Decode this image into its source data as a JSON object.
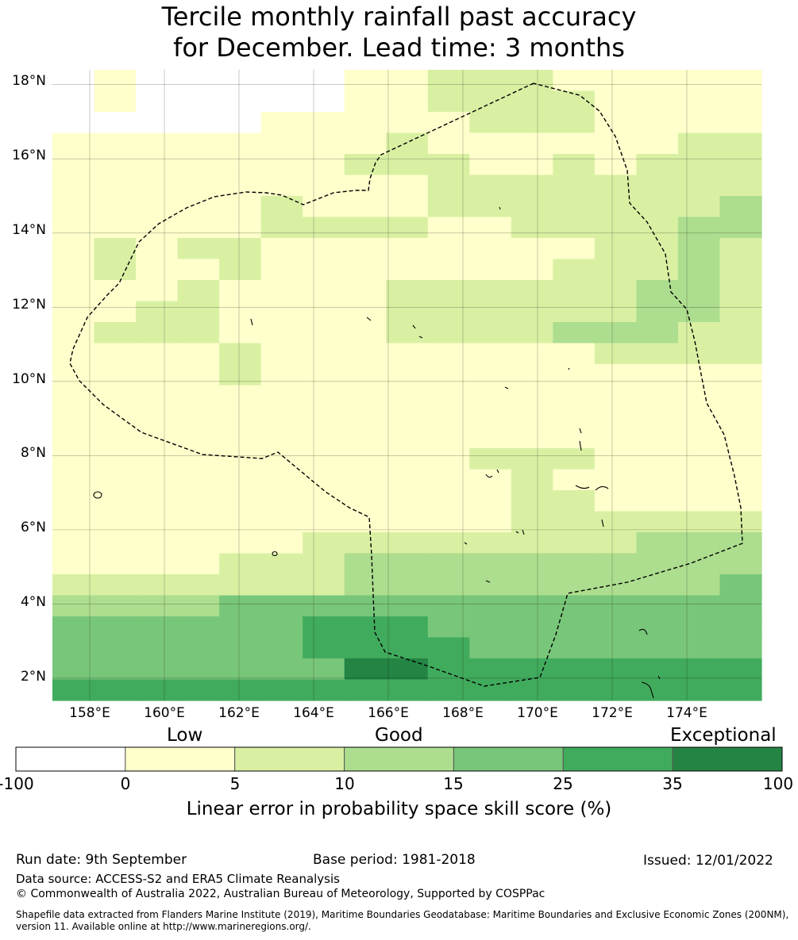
{
  "title_line1": "Tercile monthly rainfall past accuracy",
  "title_line2": "for December. Lead time: 3 months",
  "map": {
    "lon_range": [
      157,
      176
    ],
    "lat_range": [
      1.4,
      18.4
    ],
    "grid_resolution_deg": 0.8333,
    "x_ticks": [
      "158°E",
      "160°E",
      "162°E",
      "164°E",
      "166°E",
      "168°E",
      "170°E",
      "172°E",
      "174°E"
    ],
    "y_ticks": [
      "18°N",
      "16°N",
      "14°N",
      "12°N",
      "10°N",
      "8°N",
      "6°N",
      "4°N",
      "2°N"
    ],
    "gridlines": true,
    "boundary_style": "dashed black line (EEZ)",
    "grid_rows_top_to_bottom": [
      "01000001122211111",
      "01000001122221111",
      "00000111112221111",
      "11111111211111122",
      "11111112221121222",
      "11111111122222222",
      "11111211122222223",
      "11111222211222233",
      "12122111111112232",
      "12112111111122232",
      "11121111222222332",
      "11221111222222332",
      "12221111222233322",
      "11112111111112222",
      "11112111111111111",
      "11111111111111111",
      "11111111111111111",
      "11111111111111111",
      "11111111112221111",
      "11111111111211111",
      "11111111111221111",
      "11111111111222222",
      "11111122222222333",
      "11112223333333333",
      "22222223333333334",
      "33334444444444444",
      "44444455544444444",
      "44444455554444444",
      "44444446655555555",
      "55555555555555555"
    ]
  },
  "colorbar": {
    "categories": [
      "Low",
      "Good",
      "Exceptional"
    ],
    "ticks": [
      "-100",
      "0",
      "5",
      "10",
      "15",
      "25",
      "35",
      "100"
    ],
    "colors": [
      "#ffffff",
      "#ffffcc",
      "#d9f0a3",
      "#addd8e",
      "#78c679",
      "#41ab5d",
      "#238443"
    ],
    "label": "Linear error in probability space skill score (%)"
  },
  "footer": {
    "run_date": "Run date: 9th September",
    "base_period": "Base period: 1981-2018",
    "issued": "Issued: 12/01/2022",
    "data_source": "Data source: ACCESS-S2 and ERA5 Climate Reanalysis",
    "copyright": "© Commonwealth of Australia 2022, Australian Bureau of Meteorology, Supported by COSPPac",
    "shapefile_line1": "Shapefile data extracted from Flanders Marine Institute (2019), Maritime Boundaries Geodatabase: Maritime Boundaries and Exclusive Economic Zones (200NM),",
    "shapefile_line2": "version 11. Available online at http://www.marineregions.org/."
  }
}
